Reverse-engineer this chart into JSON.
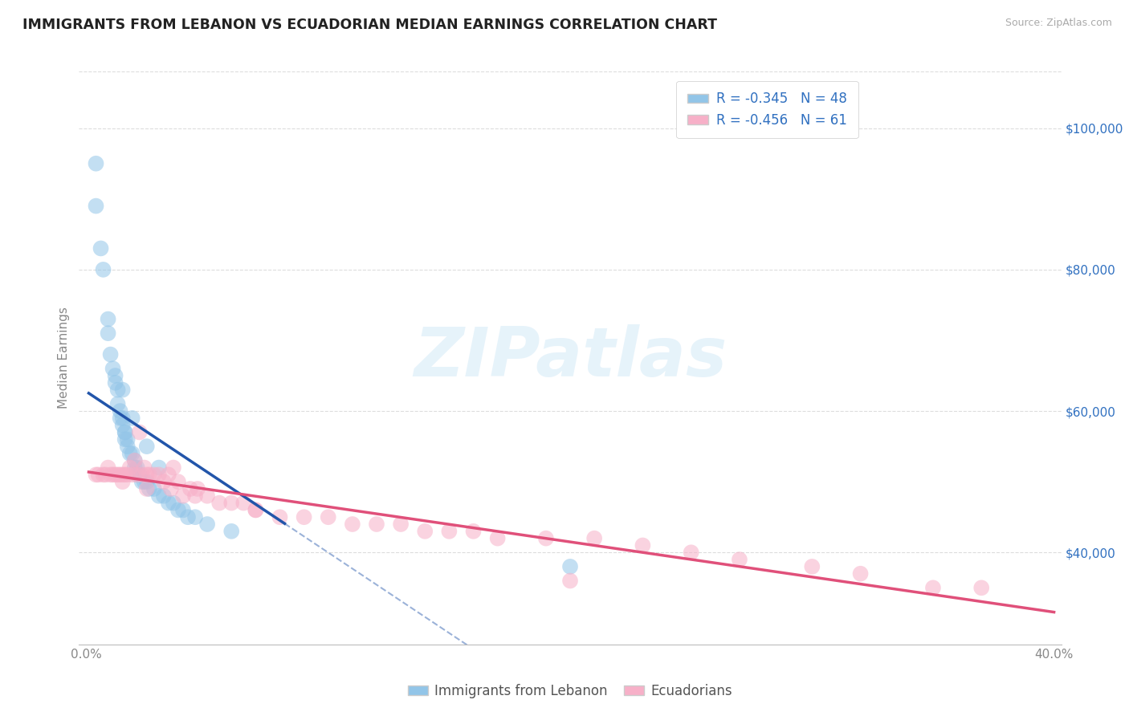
{
  "title": "IMMIGRANTS FROM LEBANON VS ECUADORIAN MEDIAN EARNINGS CORRELATION CHART",
  "source": "Source: ZipAtlas.com",
  "ylabel": "Median Earnings",
  "y_ticks": [
    40000,
    60000,
    80000,
    100000
  ],
  "y_tick_labels": [
    "$40,000",
    "$60,000",
    "$80,000",
    "$100,000"
  ],
  "xlim": [
    -0.003,
    0.403
  ],
  "ylim": [
    27000,
    108000
  ],
  "legend_label1": "Immigrants from Lebanon",
  "legend_label2": "Ecuadorians",
  "watermark": "ZIPatlas",
  "blue_color": "#92c5e8",
  "pink_color": "#f7b0c8",
  "line_blue": "#2255aa",
  "line_pink": "#e0507a",
  "legend_text_color": "#3070c0",
  "axis_text_color": "#888888",
  "grid_color": "#dddddd",
  "blue_scatter_x": [
    0.004,
    0.004,
    0.006,
    0.007,
    0.009,
    0.01,
    0.011,
    0.012,
    0.013,
    0.013,
    0.014,
    0.014,
    0.015,
    0.015,
    0.016,
    0.016,
    0.016,
    0.017,
    0.017,
    0.018,
    0.019,
    0.02,
    0.02,
    0.021,
    0.021,
    0.022,
    0.023,
    0.024,
    0.025,
    0.026,
    0.028,
    0.03,
    0.032,
    0.034,
    0.036,
    0.038,
    0.04,
    0.042,
    0.045,
    0.05,
    0.009,
    0.012,
    0.015,
    0.019,
    0.025,
    0.03,
    0.06,
    0.2
  ],
  "blue_scatter_y": [
    95000,
    89000,
    83000,
    80000,
    71000,
    68000,
    66000,
    64000,
    63000,
    61000,
    60000,
    59000,
    59000,
    58000,
    57000,
    57000,
    56000,
    56000,
    55000,
    54000,
    54000,
    53000,
    52000,
    52000,
    51000,
    51000,
    50000,
    50000,
    50000,
    49000,
    49000,
    48000,
    48000,
    47000,
    47000,
    46000,
    46000,
    45000,
    45000,
    44000,
    73000,
    65000,
    63000,
    59000,
    55000,
    52000,
    43000,
    38000
  ],
  "pink_scatter_x": [
    0.004,
    0.005,
    0.007,
    0.008,
    0.009,
    0.01,
    0.011,
    0.012,
    0.013,
    0.014,
    0.015,
    0.016,
    0.017,
    0.018,
    0.019,
    0.02,
    0.021,
    0.022,
    0.023,
    0.024,
    0.025,
    0.026,
    0.028,
    0.03,
    0.032,
    0.034,
    0.036,
    0.038,
    0.04,
    0.043,
    0.046,
    0.05,
    0.055,
    0.06,
    0.065,
    0.07,
    0.08,
    0.09,
    0.1,
    0.11,
    0.12,
    0.13,
    0.14,
    0.15,
    0.16,
    0.17,
    0.19,
    0.21,
    0.23,
    0.25,
    0.27,
    0.3,
    0.32,
    0.35,
    0.37,
    0.015,
    0.025,
    0.035,
    0.045,
    0.07,
    0.2
  ],
  "pink_scatter_y": [
    51000,
    51000,
    51000,
    51000,
    52000,
    51000,
    51000,
    51000,
    51000,
    51000,
    51000,
    51000,
    51000,
    52000,
    51000,
    53000,
    51000,
    57000,
    51000,
    52000,
    51000,
    51000,
    51000,
    51000,
    50000,
    51000,
    52000,
    50000,
    48000,
    49000,
    49000,
    48000,
    47000,
    47000,
    47000,
    46000,
    45000,
    45000,
    45000,
    44000,
    44000,
    44000,
    43000,
    43000,
    43000,
    42000,
    42000,
    42000,
    41000,
    40000,
    39000,
    38000,
    37000,
    35000,
    35000,
    50000,
    49000,
    49000,
    48000,
    46000,
    36000
  ]
}
